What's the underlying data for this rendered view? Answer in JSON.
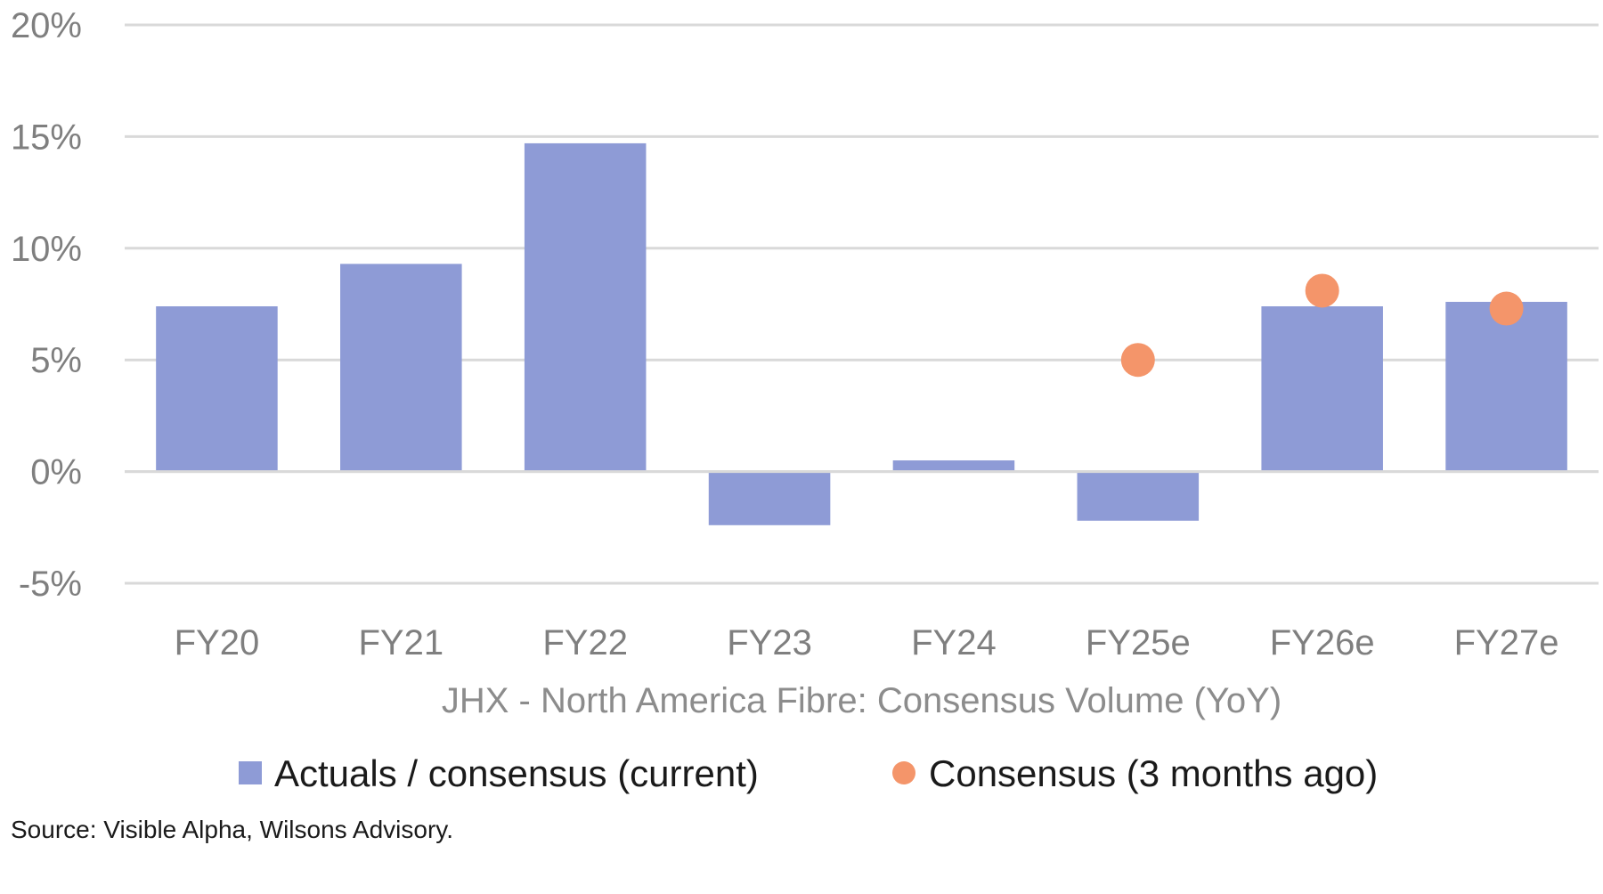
{
  "chart_data": {
    "type": "bar",
    "title": "JHX - North America Fibre: Consensus Volume (YoY)",
    "xlabel": "JHX - North America Fibre: Consensus Volume (YoY)",
    "ylabel": "",
    "ylim": [
      -5,
      20
    ],
    "y_ticks": [
      -5,
      0,
      5,
      10,
      15,
      20
    ],
    "y_tick_labels": [
      "-5%",
      "0%",
      "5%",
      "10%",
      "15%",
      "20%"
    ],
    "grid": true,
    "categories": [
      "FY20",
      "FY21",
      "FY22",
      "FY23",
      "FY24",
      "FY25e",
      "FY26e",
      "FY27e"
    ],
    "series": [
      {
        "name": "Actuals / consensus (current)",
        "kind": "bar",
        "color": "#8e9bd6",
        "values": [
          7.4,
          9.3,
          14.7,
          -2.4,
          0.5,
          -2.2,
          7.4,
          7.6
        ]
      },
      {
        "name": "Consensus (3 months ago)",
        "kind": "scatter",
        "color": "#f4956a",
        "values": [
          null,
          null,
          null,
          null,
          null,
          5.0,
          8.1,
          7.3
        ]
      }
    ],
    "legend_position": "bottom"
  },
  "source": "Source: Visible Alpha, Wilsons Advisory."
}
